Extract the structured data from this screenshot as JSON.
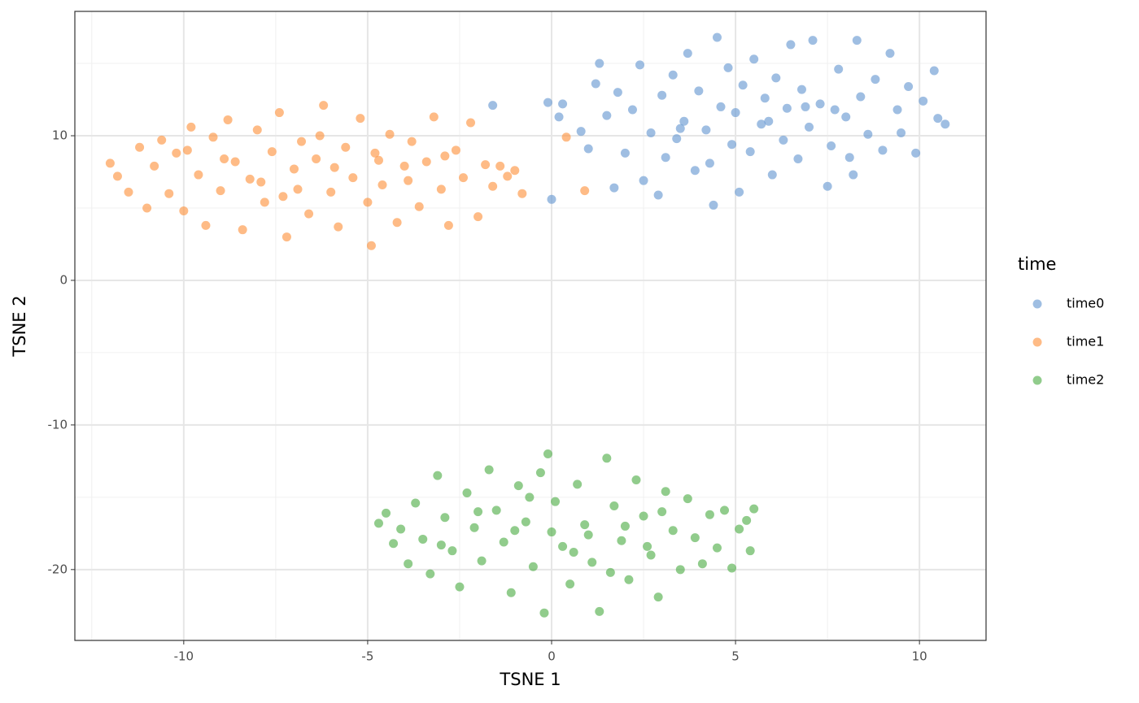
{
  "chart_data": {
    "type": "scatter",
    "x_label": "TSNE 1",
    "y_label": "TSNE 2",
    "legend_title": "time",
    "xlim": [
      -12.96,
      11.81
    ],
    "ylim": [
      -24.9,
      18.6
    ],
    "xticks": [
      -10,
      -5,
      0,
      5,
      10
    ],
    "yticks": [
      -20,
      -10,
      0,
      10
    ],
    "xminor": [
      -12.5,
      -7.5,
      -2.5,
      2.5,
      7.5
    ],
    "yminor": [
      -15,
      -5,
      5,
      15
    ],
    "grid": true,
    "legend": "right",
    "alpha": 0.65,
    "series": [
      {
        "name": "time0",
        "color": "#6b9bd2",
        "x": [
          -1.6,
          0,
          -0.1,
          0.2,
          10.7,
          4.5,
          0.3,
          0.8,
          1.0,
          1.2,
          1.3,
          1.5,
          1.7,
          1.8,
          2.0,
          2.2,
          2.4,
          2.5,
          2.7,
          2.9,
          3.0,
          3.1,
          3.3,
          3.4,
          3.6,
          3.7,
          3.9,
          4.0,
          4.2,
          4.3,
          4.4,
          4.6,
          4.8,
          4.9,
          5.0,
          5.1,
          5.2,
          5.4,
          5.5,
          5.7,
          5.8,
          6.0,
          6.1,
          6.3,
          6.4,
          6.5,
          6.7,
          6.8,
          7.0,
          7.1,
          7.3,
          7.5,
          7.6,
          7.8,
          8.0,
          8.1,
          8.3,
          8.4,
          8.6,
          8.8,
          9.0,
          9.2,
          9.4,
          9.5,
          9.7,
          9.9,
          10.1,
          10.4,
          10.5,
          8.2,
          5.9,
          6.9,
          3.5,
          7.7
        ],
        "values": [
          12.1,
          5.6,
          12.3,
          11.3,
          10.8,
          16.8,
          12.2,
          10.3,
          9.1,
          13.6,
          15.0,
          11.4,
          6.4,
          13.0,
          8.8,
          11.8,
          14.9,
          6.9,
          10.2,
          5.9,
          12.8,
          8.5,
          14.2,
          9.8,
          11.0,
          15.7,
          7.6,
          13.1,
          10.4,
          8.1,
          5.2,
          12.0,
          14.7,
          9.4,
          11.6,
          6.1,
          13.5,
          8.9,
          15.3,
          10.8,
          12.6,
          7.3,
          14.0,
          9.7,
          11.9,
          16.3,
          8.4,
          13.2,
          10.6,
          16.6,
          12.2,
          6.5,
          9.3,
          14.6,
          11.3,
          8.5,
          16.6,
          12.7,
          10.1,
          13.9,
          9.0,
          15.7,
          11.8,
          10.2,
          13.4,
          8.8,
          12.4,
          14.5,
          11.2,
          7.3,
          11.0,
          12.0,
          10.5,
          11.8
        ]
      },
      {
        "name": "time1",
        "color": "#fd9645",
        "x": [
          -12.0,
          -11.8,
          -11.5,
          -11.2,
          -11.0,
          -10.8,
          -10.6,
          -10.4,
          -10.2,
          -10.0,
          -9.8,
          -9.6,
          -9.4,
          -9.2,
          -9.0,
          -8.8,
          -8.6,
          -8.4,
          -8.2,
          -8.0,
          -7.8,
          -7.6,
          -7.4,
          -7.2,
          -7.0,
          -6.8,
          -6.6,
          -6.4,
          -6.2,
          -6.0,
          -5.8,
          -5.6,
          -5.4,
          -5.2,
          -5.0,
          -4.9,
          -4.8,
          -4.6,
          -4.4,
          -4.2,
          -4.0,
          -3.8,
          -3.6,
          -3.4,
          -3.2,
          -3.0,
          -2.8,
          -2.6,
          -2.4,
          -2.2,
          -2.0,
          -1.8,
          -1.6,
          -1.4,
          -1.2,
          -1.0,
          -0.8,
          0.4,
          0.9,
          -7.9,
          -8.9,
          -6.9,
          -5.9,
          -3.9,
          -9.9,
          -2.9,
          -7.3,
          -6.3,
          -4.7
        ],
        "values": [
          8.1,
          7.2,
          6.1,
          9.2,
          5.0,
          7.9,
          9.7,
          6.0,
          8.8,
          4.8,
          10.6,
          7.3,
          3.8,
          9.9,
          6.2,
          11.1,
          8.2,
          3.5,
          7.0,
          10.4,
          5.4,
          8.9,
          11.6,
          3.0,
          7.7,
          9.6,
          4.6,
          8.4,
          12.1,
          6.1,
          3.7,
          9.2,
          7.1,
          11.2,
          5.4,
          2.4,
          8.8,
          6.6,
          10.1,
          4.0,
          7.9,
          9.6,
          5.1,
          8.2,
          11.3,
          6.3,
          3.8,
          9.0,
          7.1,
          10.9,
          4.4,
          8.0,
          6.5,
          7.9,
          7.2,
          7.6,
          6.0,
          9.9,
          6.2,
          6.8,
          8.4,
          6.3,
          7.8,
          6.9,
          9.0,
          8.6,
          5.8,
          10.0,
          8.3
        ]
      },
      {
        "name": "time2",
        "color": "#56b04f",
        "x": [
          -4.7,
          -4.5,
          -4.3,
          -4.1,
          -3.9,
          -3.7,
          -3.5,
          -3.3,
          -3.1,
          -2.9,
          -2.7,
          -2.5,
          -2.3,
          -2.1,
          -1.9,
          -1.7,
          -1.5,
          -1.3,
          -1.1,
          -0.9,
          -0.7,
          -0.5,
          -0.3,
          -0.2,
          -0.1,
          0.1,
          0.3,
          0.5,
          0.7,
          0.9,
          1.1,
          1.3,
          1.5,
          1.7,
          1.9,
          2.1,
          2.3,
          2.5,
          2.7,
          2.9,
          3.1,
          3.3,
          3.5,
          3.7,
          3.9,
          4.1,
          4.3,
          4.5,
          4.7,
          4.9,
          5.1,
          5.3,
          5.5,
          5.4,
          0.0,
          1.0,
          2.0,
          -1.0,
          3.0,
          -2.0,
          0.6,
          1.6,
          -0.6,
          2.6,
          -3.0
        ],
        "values": [
          -16.8,
          -16.1,
          -18.2,
          -17.2,
          -19.6,
          -15.4,
          -17.9,
          -20.3,
          -13.5,
          -16.4,
          -18.7,
          -21.2,
          -14.7,
          -17.1,
          -19.4,
          -13.1,
          -15.9,
          -18.1,
          -21.6,
          -14.2,
          -16.7,
          -19.8,
          -13.3,
          -23.0,
          -12.0,
          -15.3,
          -18.4,
          -21.0,
          -14.1,
          -16.9,
          -19.5,
          -22.9,
          -12.3,
          -15.6,
          -18.0,
          -20.7,
          -13.8,
          -16.3,
          -19.0,
          -21.9,
          -14.6,
          -17.3,
          -20.0,
          -15.1,
          -17.8,
          -19.6,
          -16.2,
          -18.5,
          -15.9,
          -19.9,
          -17.2,
          -16.6,
          -15.8,
          -18.7,
          -17.4,
          -17.6,
          -17.0,
          -17.3,
          -16.0,
          -16.0,
          -18.8,
          -20.2,
          -15.0,
          -18.4,
          -18.3
        ]
      }
    ]
  }
}
